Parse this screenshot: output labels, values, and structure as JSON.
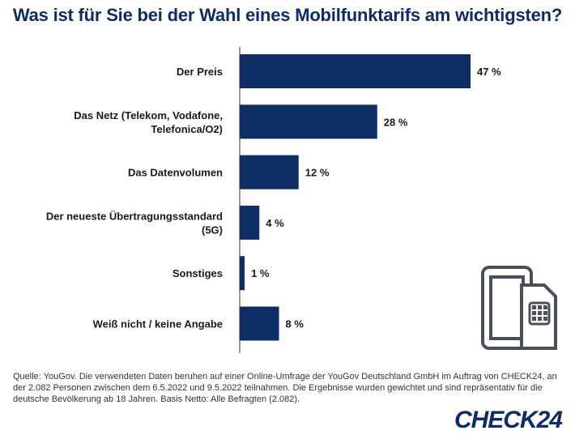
{
  "title": "Was ist für Sie bei der Wahl eines Mobilfunktarifs am wichtigsten?",
  "chart_data": {
    "type": "bar",
    "orientation": "horizontal",
    "categories": [
      [
        "Der Preis"
      ],
      [
        "Das Netz (Telekom, Vodafone,",
        "Telefonica/O2)"
      ],
      [
        "Das Datenvolumen"
      ],
      [
        "Der neueste Übertragungsstandard",
        "(5G)"
      ],
      [
        "Sonstiges"
      ],
      [
        "Weiß nicht / keine Angabe"
      ]
    ],
    "values": [
      47,
      28,
      12,
      4,
      1,
      8
    ],
    "value_labels": [
      "47 %",
      "28 %",
      "12 %",
      "4 %",
      "1 %",
      "8 %"
    ],
    "unit": "%",
    "xlim": [
      0,
      47
    ],
    "grid": false,
    "bar_color": "#0c2d66"
  },
  "footnote": "Quelle: YouGov. Die verwendeten Daten beruhen auf einer Online-Umfrage der YouGov Deutschland GmbH im Auftrag von CHECK24, an der 2.082 Personen zwischen dem 6.5.2022 und 9.5.2022 teilnahmen. Die Ergebnisse wurden gewichtet und sind repräsentativ für die deutsche Bevölkerung ab 18 Jahren. Basis Netto: Alle Befragten (2.082).",
  "logo_text": "CHECK24",
  "icons": [
    "phone-sim-icon"
  ],
  "colors": {
    "brand": "#0c2d66",
    "icon": "#4a4f5a"
  }
}
